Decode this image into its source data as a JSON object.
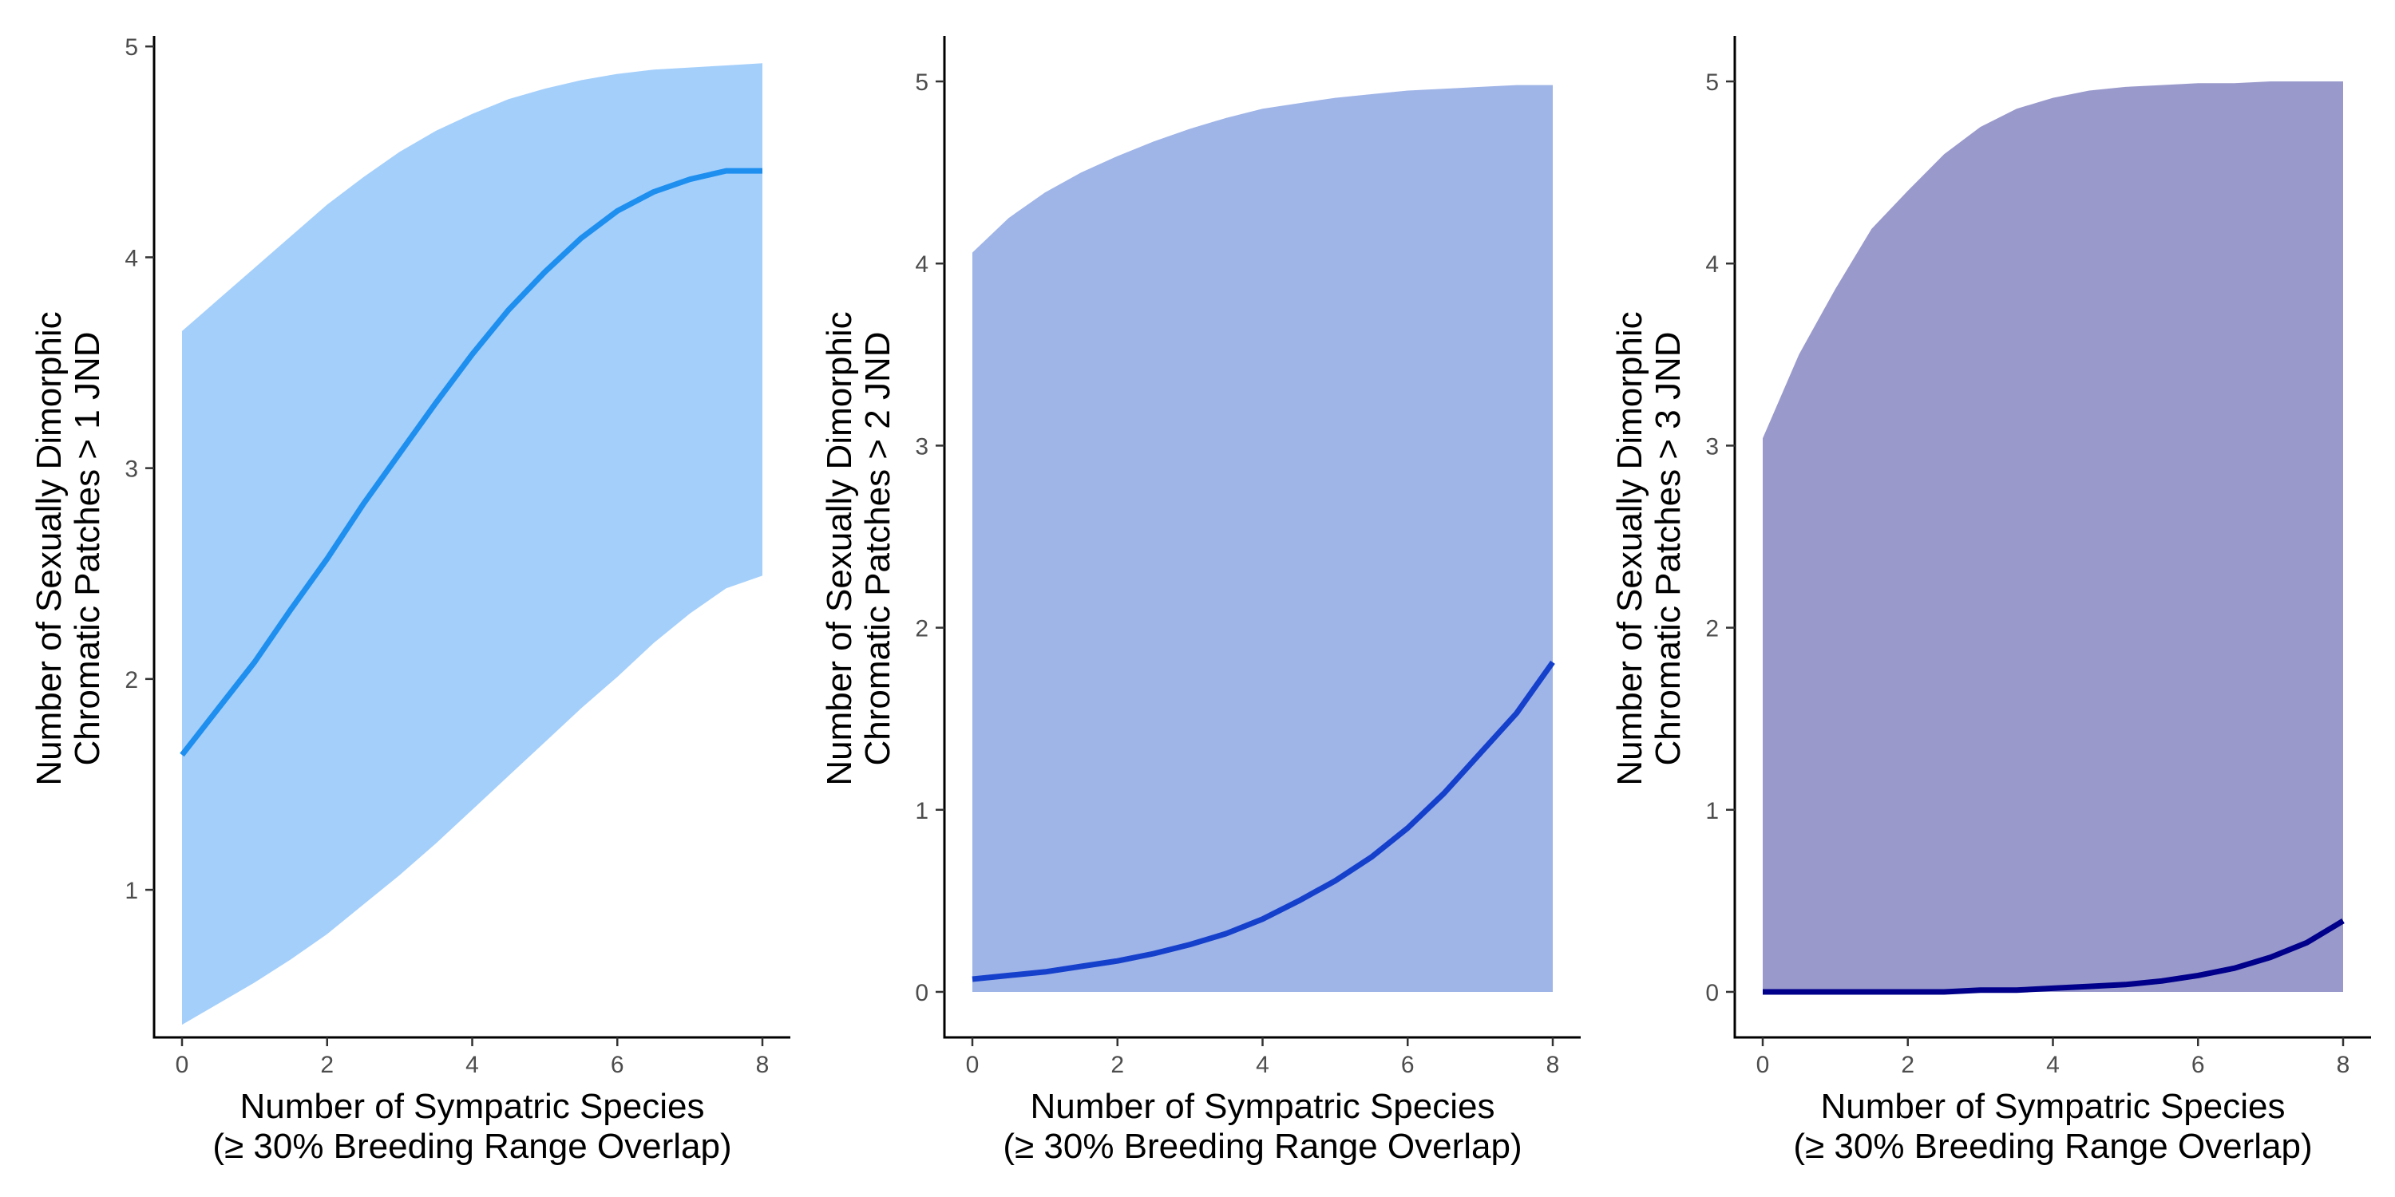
{
  "chart_data": [
    {
      "type": "line",
      "band": true,
      "xlabel": [
        "Number of Sympatric Species",
        "(≥ 30% Breeding Range Overlap)"
      ],
      "ylabel": [
        "Number of Sexually Dimorphic",
        "Chromatic Patches > 1 JND"
      ],
      "xlim": [
        0,
        8
      ],
      "ylim": [
        0.3,
        5.05
      ],
      "xticks": [
        "0",
        "2",
        "4",
        "6",
        "8"
      ],
      "yticks": [
        "1",
        "2",
        "3",
        "4",
        "5"
      ],
      "band_color": "#a4cffb",
      "line_color": "#1e8fef",
      "series": [
        {
          "x": [
            0,
            0.5,
            1,
            1.5,
            2,
            2.5,
            3,
            3.5,
            4,
            4.5,
            5,
            5.5,
            6,
            6.5,
            7,
            7.5,
            8
          ],
          "y": [
            1.64,
            1.86,
            2.08,
            2.33,
            2.57,
            2.83,
            3.07,
            3.31,
            3.54,
            3.75,
            3.93,
            4.09,
            4.22,
            4.31,
            4.37,
            4.41,
            4.41
          ],
          "lower": [
            0.36,
            0.46,
            0.56,
            0.67,
            0.79,
            0.93,
            1.07,
            1.22,
            1.38,
            1.54,
            1.7,
            1.86,
            2.01,
            2.17,
            2.31,
            2.43,
            2.49
          ],
          "upper": [
            3.65,
            3.8,
            3.95,
            4.1,
            4.25,
            4.38,
            4.5,
            4.6,
            4.68,
            4.75,
            4.8,
            4.84,
            4.87,
            4.89,
            4.9,
            4.91,
            4.92
          ]
        }
      ]
    },
    {
      "type": "line",
      "band": true,
      "xlabel": [
        "Number of Sympatric Species",
        "(≥ 30% Breeding Range Overlap)"
      ],
      "ylabel": [
        "Number of Sexually Dimorphic",
        "Chromatic Patches > 2 JND"
      ],
      "xlim": [
        0,
        8
      ],
      "ylim": [
        -0.25,
        5.25
      ],
      "xticks": [
        "0",
        "2",
        "4",
        "6",
        "8"
      ],
      "yticks": [
        "0",
        "1",
        "2",
        "3",
        "4",
        "5"
      ],
      "band_color": "#9fb4e7",
      "line_color": "#1540cc",
      "series": [
        {
          "x": [
            0,
            0.5,
            1,
            1.5,
            2,
            2.5,
            3,
            3.5,
            4,
            4.5,
            5,
            5.5,
            6,
            6.5,
            7,
            7.5,
            8
          ],
          "y": [
            0.07,
            0.09,
            0.11,
            0.14,
            0.17,
            0.21,
            0.26,
            0.32,
            0.4,
            0.5,
            0.61,
            0.74,
            0.9,
            1.09,
            1.31,
            1.53,
            1.81
          ],
          "lower": [
            0.0,
            0.0,
            0.0,
            0.0,
            0.0,
            0.0,
            0.0,
            0.0,
            0.0,
            0.0,
            0.0,
            0.0,
            0.0,
            0.0,
            0.0,
            0.0,
            0.0
          ],
          "upper": [
            4.06,
            4.25,
            4.39,
            4.5,
            4.59,
            4.67,
            4.74,
            4.8,
            4.85,
            4.88,
            4.91,
            4.93,
            4.95,
            4.96,
            4.97,
            4.98,
            4.98
          ]
        }
      ]
    },
    {
      "type": "line",
      "band": true,
      "xlabel": [
        "Number of Sympatric Species",
        "(≥ 30% Breeding Range Overlap)"
      ],
      "ylabel": [
        "Number of Sexually Dimorphic",
        "Chromatic Patches > 3 JND"
      ],
      "xlim": [
        0,
        8
      ],
      "ylim": [
        -0.25,
        5.25
      ],
      "xticks": [
        "0",
        "2",
        "4",
        "6",
        "8"
      ],
      "yticks": [
        "0",
        "1",
        "2",
        "3",
        "4",
        "5"
      ],
      "band_color": "#9999cc",
      "line_color": "#00008b",
      "series": [
        {
          "x": [
            0,
            0.5,
            1,
            1.5,
            2,
            2.5,
            3,
            3.5,
            4,
            4.5,
            5,
            5.5,
            6,
            6.5,
            7,
            7.5,
            8
          ],
          "y": [
            0.0,
            0.0,
            0.0,
            0.0,
            0.0,
            0.0,
            0.01,
            0.01,
            0.02,
            0.03,
            0.04,
            0.06,
            0.09,
            0.13,
            0.19,
            0.27,
            0.39
          ],
          "lower": [
            0.0,
            0.0,
            0.0,
            0.0,
            0.0,
            0.0,
            0.0,
            0.0,
            0.0,
            0.0,
            0.0,
            0.0,
            0.0,
            0.0,
            0.0,
            0.0,
            0.0
          ],
          "upper": [
            3.04,
            3.5,
            3.86,
            4.19,
            4.4,
            4.6,
            4.75,
            4.85,
            4.91,
            4.95,
            4.97,
            4.98,
            4.99,
            4.99,
            5.0,
            5.0,
            5.0
          ]
        }
      ]
    }
  ]
}
